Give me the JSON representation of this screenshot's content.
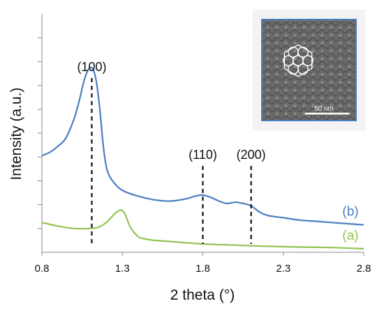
{
  "chart_data": {
    "type": "line",
    "xlabel": "2 theta (°)",
    "ylabel": "Intensity (a.u.)",
    "xlim": [
      0.8,
      2.8
    ],
    "x_ticks": [
      0.8,
      1.3,
      1.8,
      2.3,
      2.8
    ],
    "x_tick_labels": [
      "0.8",
      "1.3",
      "1.8",
      "2.3",
      "2.8"
    ],
    "ylim": [
      0,
      100
    ],
    "y_minor_ticks": [
      10,
      20,
      30,
      40,
      50,
      60,
      70,
      80,
      90
    ],
    "series": [
      {
        "name": "(b)",
        "color": "#4a7ebf",
        "x": [
          0.8,
          0.85,
          0.9,
          0.95,
          1.0,
          1.03,
          1.06,
          1.08,
          1.1,
          1.12,
          1.14,
          1.16,
          1.18,
          1.2,
          1.22,
          1.25,
          1.3,
          1.4,
          1.5,
          1.6,
          1.7,
          1.75,
          1.8,
          1.85,
          1.9,
          1.95,
          2.0,
          2.05,
          2.1,
          2.15,
          2.2,
          2.3,
          2.4,
          2.5,
          2.6,
          2.7,
          2.8
        ],
        "values": [
          40.5,
          42.0,
          44.5,
          48.0,
          56.0,
          63.0,
          71.5,
          75.5,
          77.5,
          76.5,
          71.0,
          60.0,
          45.5,
          36.0,
          32.0,
          29.0,
          26.0,
          23.5,
          22.0,
          21.5,
          22.5,
          23.5,
          24.0,
          23.0,
          21.5,
          20.5,
          21.0,
          20.5,
          19.5,
          17.0,
          15.5,
          14.5,
          13.5,
          13.0,
          12.5,
          12.0,
          11.5
        ]
      },
      {
        "name": "(a)",
        "color": "#92c353",
        "x": [
          0.8,
          0.9,
          1.0,
          1.1,
          1.15,
          1.2,
          1.25,
          1.28,
          1.3,
          1.32,
          1.35,
          1.4,
          1.45,
          1.5,
          1.6,
          1.8,
          2.0,
          2.2,
          2.4,
          2.6,
          2.8
        ],
        "values": [
          12.5,
          11.0,
          10.0,
          10.0,
          10.5,
          12.5,
          16.0,
          17.5,
          17.5,
          15.5,
          10.5,
          6.5,
          5.5,
          5.0,
          4.5,
          3.5,
          3.0,
          2.5,
          2.2,
          2.0,
          1.5
        ]
      }
    ],
    "reference_lines": [
      {
        "label": "(100)",
        "x": 1.11
      },
      {
        "label": "(110)",
        "x": 1.8
      },
      {
        "label": "(200)",
        "x": 2.1
      }
    ],
    "inset": {
      "scale_bar_label": "50 nm",
      "border_color": "#4a7ebf"
    }
  }
}
